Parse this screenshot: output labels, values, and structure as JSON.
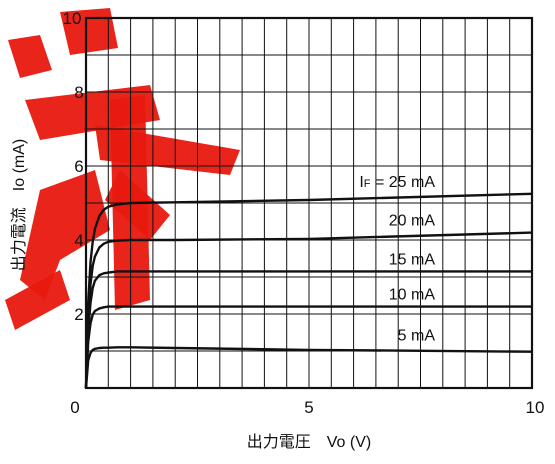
{
  "chart_data": {
    "type": "line",
    "title": "",
    "xlabel": "出力電圧　Vo (V)",
    "ylabel": "出力電流　Io (mA)",
    "xlim": [
      0,
      10
    ],
    "ylim": [
      0,
      10
    ],
    "x_ticks": [
      "0",
      "5",
      "10"
    ],
    "y_ticks": [
      "2",
      "4",
      "6",
      "8",
      "10"
    ],
    "grid": {
      "x_divisions": 20,
      "y_divisions": 10
    },
    "series": [
      {
        "name": "IF = 25 mA",
        "label_parts": [
          "I",
          "F",
          " = 25 mA"
        ],
        "x": [
          0,
          0.05,
          0.1,
          0.15,
          0.2,
          0.3,
          0.4,
          0.5,
          0.7,
          1.0,
          2,
          5,
          10
        ],
        "y": [
          0,
          2.3,
          3.4,
          3.95,
          4.3,
          4.65,
          4.82,
          4.9,
          4.96,
          5.0,
          5.02,
          5.08,
          5.25
        ]
      },
      {
        "name": "20 mA",
        "x": [
          0,
          0.05,
          0.1,
          0.15,
          0.2,
          0.3,
          0.4,
          0.5,
          0.7,
          1.0,
          2,
          5,
          10
        ],
        "y": [
          0,
          1.9,
          2.8,
          3.3,
          3.55,
          3.8,
          3.9,
          3.95,
          3.98,
          4.0,
          4.0,
          4.03,
          4.2
        ]
      },
      {
        "name": "15 mA",
        "x": [
          0,
          0.05,
          0.1,
          0.15,
          0.2,
          0.3,
          0.4,
          0.5,
          0.7,
          1.0,
          2,
          5,
          10
        ],
        "y": [
          0,
          1.55,
          2.3,
          2.7,
          2.9,
          3.05,
          3.1,
          3.12,
          3.15,
          3.15,
          3.15,
          3.15,
          3.15
        ]
      },
      {
        "name": "10 mA",
        "x": [
          0,
          0.05,
          0.1,
          0.15,
          0.2,
          0.3,
          0.4,
          0.5,
          0.7,
          1.0,
          2,
          5,
          10
        ],
        "y": [
          0,
          1.25,
          1.75,
          1.98,
          2.08,
          2.15,
          2.18,
          2.2,
          2.2,
          2.2,
          2.2,
          2.2,
          2.2
        ]
      },
      {
        "name": "5 mA",
        "x": [
          0,
          0.05,
          0.1,
          0.15,
          0.2,
          0.3,
          0.4,
          0.5,
          0.7,
          1.0,
          2,
          5,
          10
        ],
        "y": [
          0,
          0.75,
          0.95,
          1.03,
          1.06,
          1.08,
          1.09,
          1.09,
          1.1,
          1.1,
          1.08,
          1.03,
          0.98
        ]
      }
    ],
    "series_labels": [
      "IF = 25 mA",
      "20 mA",
      "15 mA",
      "10 mA",
      "5 mA"
    ]
  }
}
